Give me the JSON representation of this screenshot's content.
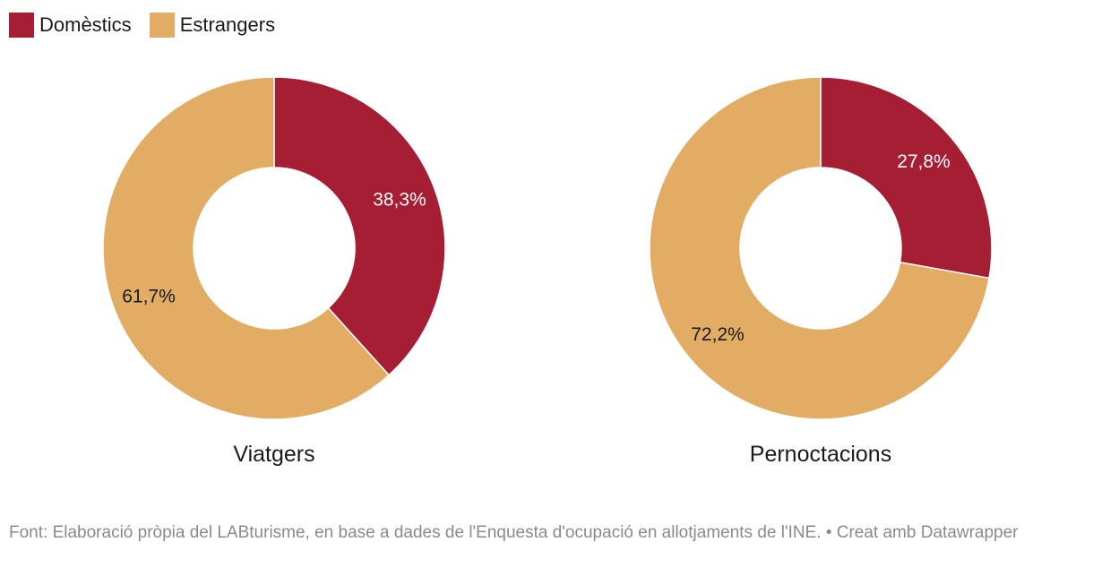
{
  "colors": {
    "domestic": "#a51e33",
    "foreign": "#e2ac64"
  },
  "legend": [
    {
      "label": "Domèstics",
      "color": "#a51e33"
    },
    {
      "label": "Estrangers",
      "color": "#e2ac64"
    }
  ],
  "chart_data": [
    {
      "type": "pie",
      "title": "Viatgers",
      "slices": [
        {
          "label": "Domèstics",
          "value": 38.3,
          "display": "38,3%",
          "color": "#a51e33",
          "text_color": "#ffffff"
        },
        {
          "label": "Estrangers",
          "value": 61.7,
          "display": "61,7%",
          "color": "#e2ac64",
          "text_color": "#1a1a1a"
        }
      ]
    },
    {
      "type": "pie",
      "title": "Pernoctacions",
      "slices": [
        {
          "label": "Domèstics",
          "value": 27.8,
          "display": "27,8%",
          "color": "#a51e33",
          "text_color": "#ffffff"
        },
        {
          "label": "Estrangers",
          "value": 72.2,
          "display": "72,2%",
          "color": "#e2ac64",
          "text_color": "#1a1a1a"
        }
      ]
    }
  ],
  "footer": {
    "text": "Font: Elaboració pròpia del LABturisme, en base a dades de l'Enquesta d'ocupació en allotjaments de l'INE. • Creat amb Datawrapper"
  }
}
